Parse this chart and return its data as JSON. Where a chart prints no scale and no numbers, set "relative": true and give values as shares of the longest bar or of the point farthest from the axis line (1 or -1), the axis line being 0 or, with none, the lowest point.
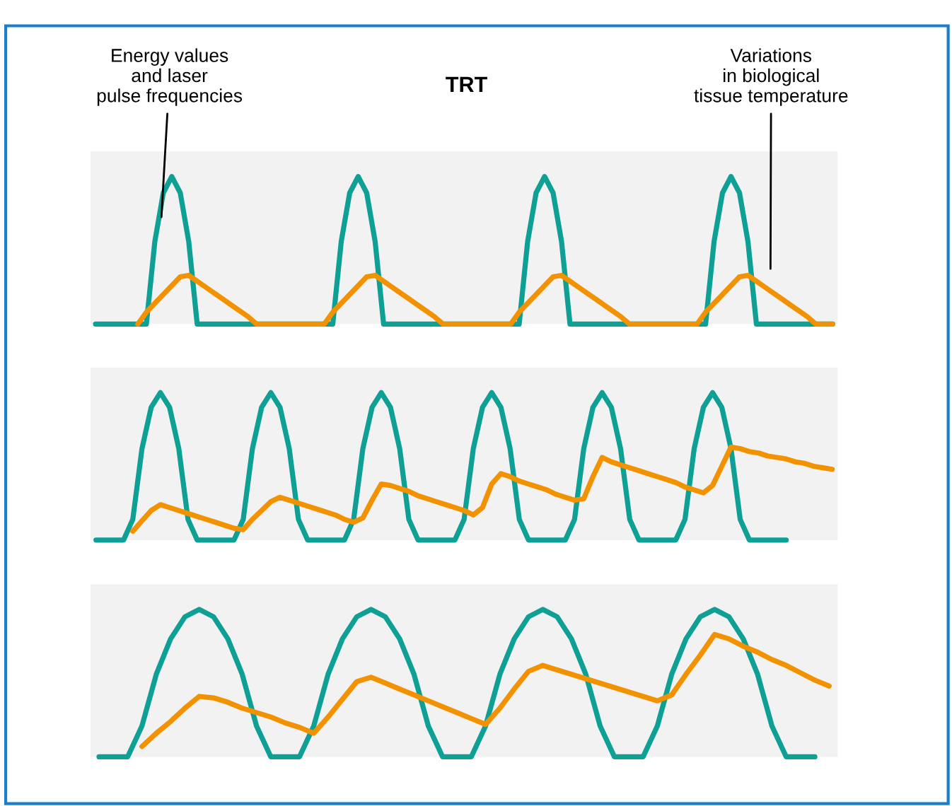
{
  "chart_data": [
    {
      "type": "line",
      "relative": true,
      "title": "TRT",
      "annotations": [
        "Energy values\nand laser\npulse frequencies",
        "Variations\nin biological\ntissue temperature"
      ],
      "categories": [
        null,
        null,
        null,
        null,
        null,
        null,
        null,
        null,
        null,
        null,
        null,
        null,
        null,
        null,
        null,
        null,
        null,
        null,
        null,
        null,
        null,
        null,
        null,
        null,
        null,
        null,
        null,
        null,
        null,
        null,
        null,
        null,
        null,
        null,
        null,
        null,
        null,
        null,
        null,
        null,
        null,
        null,
        null,
        null,
        null,
        null,
        null,
        null,
        null,
        null,
        null,
        null,
        null,
        null,
        null,
        null,
        null,
        null,
        null,
        null,
        null,
        null,
        null,
        null,
        null,
        null,
        null,
        null,
        null,
        null,
        null,
        null,
        null,
        null,
        null,
        null,
        null,
        null,
        null,
        null,
        null,
        null,
        null,
        null,
        null,
        null,
        null,
        null
      ],
      "series": [
        {
          "color": "#0fa095",
          "values": [
            0,
            0,
            0,
            0,
            0,
            0,
            0,
            0.56,
            0.89,
            1,
            0.89,
            0.56,
            0,
            0,
            0,
            0,
            0,
            0,
            0,
            0,
            0,
            0,
            0,
            0,
            0,
            0,
            0,
            0,
            0,
            0.56,
            0.89,
            1,
            0.89,
            0.56,
            0,
            0,
            0,
            0,
            0,
            0,
            0,
            0,
            0,
            0,
            0,
            0,
            0,
            0,
            0,
            0,
            0,
            0.56,
            0.89,
            1,
            0.89,
            0.56,
            0,
            0,
            0,
            0,
            0,
            0,
            0,
            0,
            0,
            0,
            0,
            0,
            0,
            0,
            0,
            0,
            0,
            0.56,
            0.89,
            1,
            0.89,
            0.56,
            0,
            0,
            0,
            0,
            0,
            0,
            0,
            0,
            0,
            0
          ]
        },
        {
          "color": "#f39200",
          "values": [
            null,
            null,
            null,
            null,
            null,
            0,
            0.08,
            0.14,
            0.2,
            0.26,
            0.32,
            0.33,
            0.29,
            0.25,
            0.21,
            0.17,
            0.13,
            0.09,
            0.05,
            0,
            0,
            0,
            0,
            0,
            0,
            0,
            0,
            0,
            0.08,
            0.14,
            0.2,
            0.26,
            0.32,
            0.33,
            0.29,
            0.25,
            0.21,
            0.17,
            0.13,
            0.09,
            0.05,
            0,
            0,
            0,
            0,
            0,
            0,
            0,
            0,
            0,
            0.08,
            0.14,
            0.2,
            0.26,
            0.32,
            0.33,
            0.29,
            0.25,
            0.21,
            0.17,
            0.13,
            0.09,
            0.05,
            0,
            0,
            0,
            0,
            0,
            0,
            0,
            0,
            0,
            0.08,
            0.14,
            0.2,
            0.26,
            0.32,
            0.33,
            0.29,
            0.25,
            0.21,
            0.17,
            0.13,
            0.09,
            0.05,
            0,
            0,
            0
          ]
        }
      ]
    },
    {
      "type": "line",
      "relative": true,
      "categories": [
        null,
        null,
        null,
        null,
        null,
        null,
        null,
        null,
        null,
        null,
        null,
        null,
        null,
        null,
        null,
        null,
        null,
        null,
        null,
        null,
        null,
        null,
        null,
        null,
        null,
        null,
        null,
        null,
        null,
        null,
        null,
        null,
        null,
        null,
        null,
        null,
        null,
        null,
        null,
        null,
        null,
        null,
        null,
        null,
        null,
        null,
        null,
        null,
        null,
        null,
        null,
        null,
        null,
        null,
        null,
        null,
        null,
        null,
        null,
        null,
        null,
        null,
        null,
        null,
        null,
        null,
        null,
        null,
        null,
        null,
        null,
        null,
        null,
        null,
        null,
        null,
        null,
        null,
        null,
        null,
        null
      ],
      "series": [
        {
          "color": "#0fa095",
          "values": [
            0,
            0,
            0,
            0,
            0.14,
            0.62,
            0.9,
            1,
            0.9,
            0.62,
            0.14,
            0,
            0,
            0,
            0,
            0,
            0.14,
            0.62,
            0.9,
            1,
            0.9,
            0.62,
            0.14,
            0,
            0,
            0,
            0,
            0,
            0.14,
            0.62,
            0.9,
            1,
            0.9,
            0.62,
            0.14,
            0,
            0,
            0,
            0,
            0,
            0.14,
            0.62,
            0.9,
            1,
            0.9,
            0.62,
            0.14,
            0,
            0,
            0,
            0,
            0,
            0.14,
            0.62,
            0.9,
            1,
            0.9,
            0.62,
            0.14,
            0,
            0,
            0,
            0,
            0,
            0.14,
            0.62,
            0.9,
            1,
            0.9,
            0.62,
            0.14,
            0,
            0,
            0,
            0,
            0,
            null,
            null,
            null,
            null,
            null
          ]
        },
        {
          "color": "#f39200",
          "values": [
            null,
            null,
            null,
            null,
            0.06,
            0.13,
            0.2,
            0.24,
            0.22,
            0.2,
            0.18,
            0.16,
            0.14,
            0.12,
            0.1,
            0.08,
            0.07,
            0.14,
            0.2,
            0.26,
            0.29,
            0.27,
            0.25,
            0.23,
            0.21,
            0.19,
            0.17,
            0.14,
            0.12,
            0.15,
            0.27,
            0.38,
            0.37,
            0.35,
            0.33,
            0.3,
            0.28,
            0.26,
            0.24,
            0.22,
            0.2,
            0.17,
            0.22,
            0.38,
            0.45,
            0.43,
            0.4,
            0.38,
            0.36,
            0.34,
            0.31,
            0.29,
            0.27,
            0.28,
            0.43,
            0.56,
            0.53,
            0.51,
            0.49,
            0.47,
            0.45,
            0.43,
            0.41,
            0.39,
            0.36,
            0.34,
            0.32,
            0.37,
            0.5,
            0.63,
            0.62,
            0.6,
            0.59,
            0.57,
            0.56,
            0.55,
            0.53,
            0.52,
            0.5,
            0.49,
            0.48
          ]
        }
      ]
    },
    {
      "type": "line",
      "relative": true,
      "categories": [
        null,
        null,
        null,
        null,
        null,
        null,
        null,
        null,
        null,
        null,
        null,
        null,
        null,
        null,
        null,
        null,
        null,
        null,
        null,
        null,
        null,
        null,
        null,
        null,
        null,
        null,
        null,
        null,
        null,
        null,
        null,
        null,
        null,
        null,
        null,
        null,
        null,
        null,
        null,
        null,
        null,
        null,
        null,
        null,
        null,
        null,
        null,
        null,
        null,
        null,
        null,
        null
      ],
      "series": [
        {
          "color": "#0fa095",
          "values": [
            0,
            0,
            0,
            0.21,
            0.56,
            0.8,
            0.95,
            1,
            0.95,
            0.8,
            0.56,
            0.21,
            0,
            0,
            0,
            0.21,
            0.56,
            0.8,
            0.95,
            1,
            0.95,
            0.8,
            0.56,
            0.21,
            0,
            0,
            0,
            0.21,
            0.56,
            0.8,
            0.95,
            1,
            0.95,
            0.8,
            0.56,
            0.21,
            0,
            0,
            0,
            0.21,
            0.56,
            0.8,
            0.95,
            1,
            0.95,
            0.8,
            0.56,
            0.21,
            0,
            0,
            0,
            null
          ]
        },
        {
          "color": "#f39200",
          "values": [
            null,
            null,
            null,
            0.07,
            0.16,
            0.24,
            0.33,
            0.41,
            0.4,
            0.37,
            0.33,
            0.3,
            0.27,
            0.23,
            0.2,
            0.16,
            0.27,
            0.39,
            0.51,
            0.54,
            0.5,
            0.46,
            0.42,
            0.38,
            0.34,
            0.3,
            0.26,
            0.22,
            0.33,
            0.46,
            0.58,
            0.62,
            0.59,
            0.56,
            0.53,
            0.5,
            0.47,
            0.44,
            0.41,
            0.38,
            0.42,
            0.56,
            0.69,
            0.83,
            0.8,
            0.75,
            0.71,
            0.66,
            0.62,
            0.57,
            0.52,
            0.48
          ]
        }
      ]
    }
  ]
}
